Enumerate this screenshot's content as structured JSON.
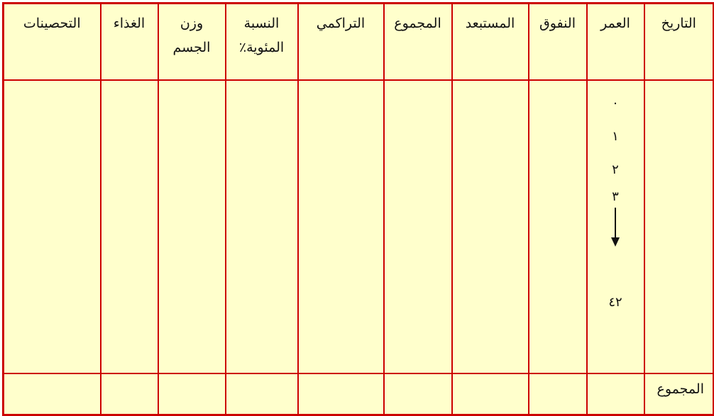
{
  "colors": {
    "border": "#cc0000",
    "background": "#ffffcc"
  },
  "table": {
    "headers": [
      "التاريخ",
      "العمر",
      "النفوق",
      "المستبعد",
      "المجموع",
      "التراكمي",
      "النسبة المئوية٪",
      "وزن الجسم",
      "الغذاء",
      "التحصينات"
    ],
    "age_values": [
      "٠",
      "١",
      "٢",
      "٣",
      "٤٢"
    ],
    "age_arrow_icon": "arrow-down-icon",
    "footer_label": "المجموع"
  }
}
